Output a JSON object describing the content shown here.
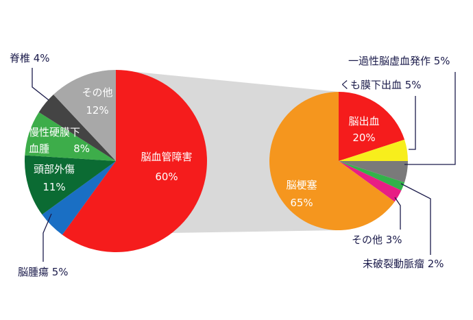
{
  "chart_data": [
    {
      "type": "pie",
      "categories": [
        "脳血管障害",
        "脳腫瘍",
        "頭部外傷",
        "慢性硬膜下血腫",
        "脊椎",
        "その他"
      ],
      "values": [
        60,
        5,
        11,
        8,
        4,
        12
      ],
      "unit": "%",
      "labels": [
        "脳血管障害",
        "脳腫瘍",
        "頭部外傷",
        "慢性硬膜下血腫",
        "脊椎",
        "その他"
      ],
      "value_labels": [
        "60%",
        "5%",
        "11%",
        "8%",
        "4%",
        "12%"
      ],
      "colors": [
        "#f51c1c",
        "#1a6fc4",
        "#0b6b33",
        "#3dad4a",
        "#444444",
        "#a8a8a8"
      ]
    },
    {
      "type": "pie",
      "categories": [
        "脳出血",
        "くも膜下出血",
        "一過性脳虚血発作",
        "未破裂動脈瘤",
        "その他",
        "脳梗塞"
      ],
      "values": [
        20,
        5,
        5,
        2,
        3,
        65
      ],
      "unit": "%",
      "labels": [
        "脳出血",
        "くも膜下出血",
        "一過性脳虚血発作",
        "未破裂動脈瘤",
        "その他",
        "脳梗塞"
      ],
      "value_labels": [
        "20%",
        "5%",
        "5%",
        "2%",
        "3%",
        "65%"
      ],
      "colors": [
        "#f51c1c",
        "#f7ee1c",
        "#7a7a7a",
        "#33b24a",
        "#e81e84",
        "#f5961e"
      ]
    }
  ]
}
